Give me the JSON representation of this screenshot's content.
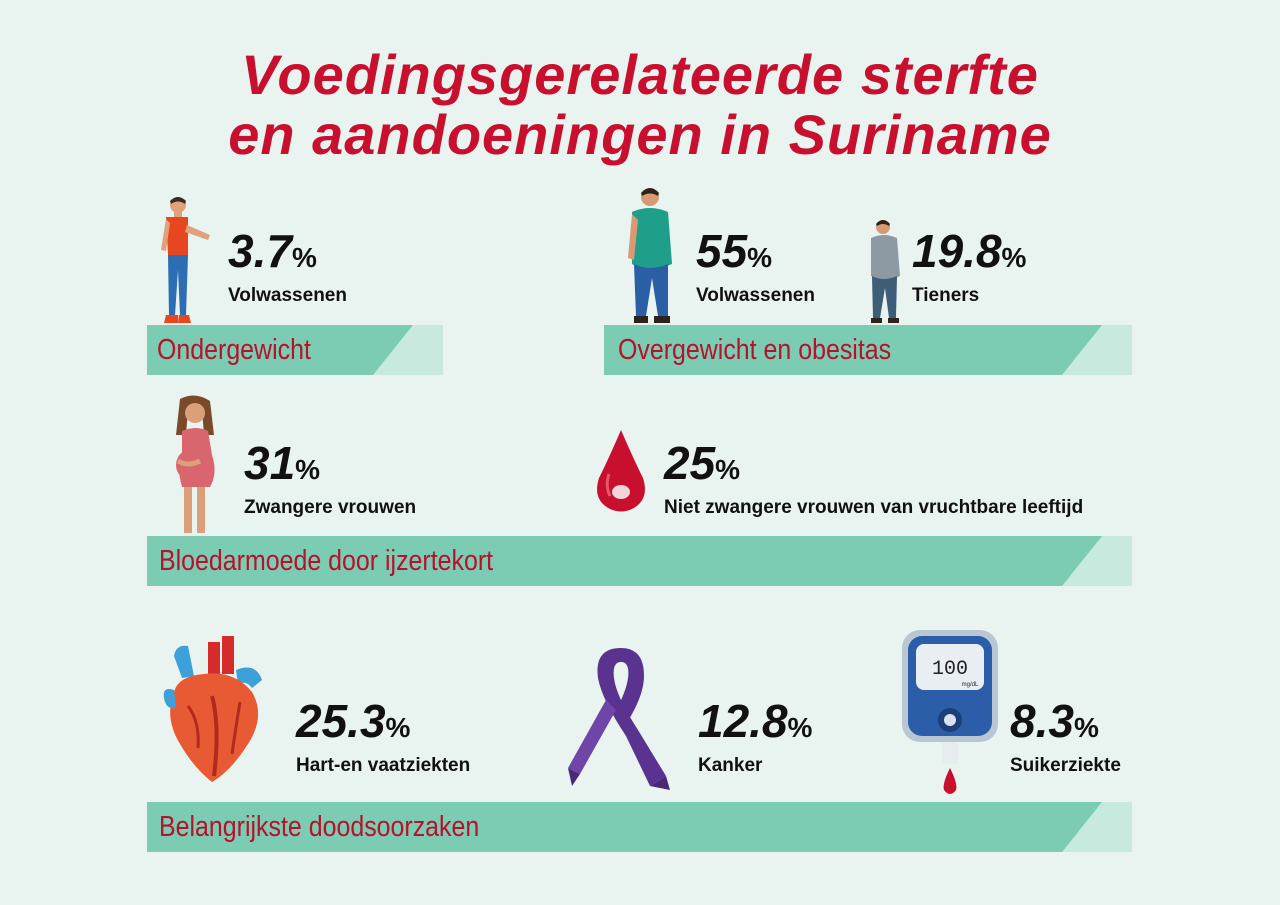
{
  "title": {
    "line1": "Voedingsgerelateerde sterfte",
    "line2": "en aandoeningen in Suriname"
  },
  "percent_sign": "%",
  "sections": {
    "ondergewicht": {
      "label": "Ondergewicht",
      "stats": [
        {
          "value": "3.7",
          "label": "Volwassenen",
          "icon": "thin-man-icon"
        }
      ]
    },
    "overgewicht": {
      "label": "Overgewicht en obesitas",
      "stats": [
        {
          "value": "55",
          "label": "Volwassenen",
          "icon": "overweight-man-icon"
        },
        {
          "value": "19.8",
          "label": "Tieners",
          "icon": "overweight-teen-icon"
        }
      ]
    },
    "bloedarmoede": {
      "label": "Bloedarmoede door ijzertekort",
      "stats": [
        {
          "value": "31",
          "label": "Zwangere vrouwen",
          "icon": "pregnant-woman-icon"
        },
        {
          "value": "25",
          "label": "Niet zwangere vrouwen van vruchtbare leeftijd",
          "icon": "blood-drop-icon"
        }
      ]
    },
    "doodsoorzaken": {
      "label": "Belangrijkste doodsoorzaken",
      "stats": [
        {
          "value": "25.3",
          "label": "Hart-en vaatziekten",
          "icon": "heart-icon"
        },
        {
          "value": "12.8",
          "label": "Kanker",
          "icon": "cancer-ribbon-icon"
        },
        {
          "value": "8.3",
          "label": "Suikerziekte",
          "icon": "glucose-meter-icon"
        }
      ]
    }
  },
  "glucose_meter": {
    "reading": "100",
    "unit": "mg/dL"
  },
  "colors": {
    "title_red": "#c8102e",
    "band_green": "#7ccbb3",
    "band_text_red": "#b5122b",
    "background": "#e9f3f0"
  }
}
